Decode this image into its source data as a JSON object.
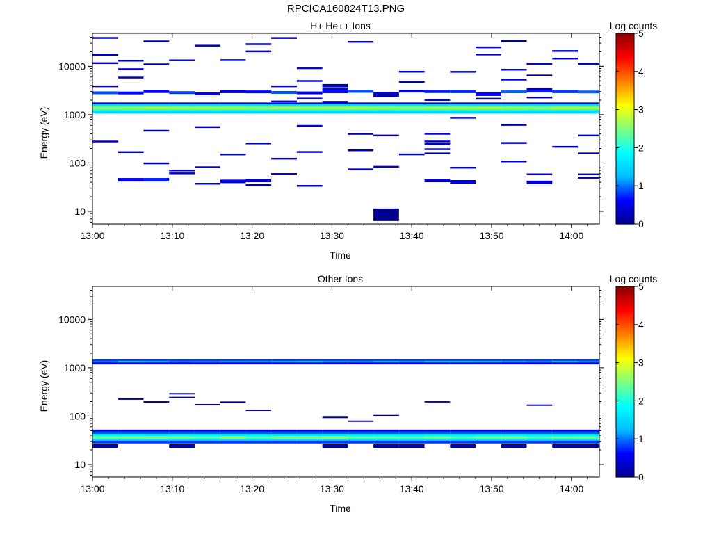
{
  "page": {
    "title": "RPCICA160824T13.PNG"
  },
  "colors": {
    "colormap": [
      "#00008b",
      "#0000ff",
      "#00bfff",
      "#00ffff",
      "#7fff7f",
      "#ffff00",
      "#ff7f00",
      "#ff0000",
      "#8b0000"
    ]
  },
  "chart_data": [
    {
      "type": "heatmap",
      "title": "H+ He++ Ions",
      "xlabel": "Time",
      "ylabel": "Energy (eV)",
      "colorbar_label": "Log counts",
      "colorbar_ticks": [
        "0",
        "1",
        "2",
        "3",
        "4",
        "5"
      ],
      "clim": [
        0,
        5
      ],
      "x_ticks": [
        "13:00",
        "13:10",
        "13:20",
        "13:30",
        "13:40",
        "13:50",
        "14:00"
      ],
      "xlim_minutes": [
        0,
        63.5
      ],
      "y_scale": "log",
      "y_ticks": [
        "10",
        "100",
        "1000",
        "10000"
      ],
      "ylim": [
        5.5,
        48000
      ],
      "bins": [
        {
          "t0": 3.2,
          "t1": 6.4,
          "e": 1500,
          "v": 2.3
        },
        {
          "t0": 6.4,
          "t1": 9.6,
          "e": 1500,
          "v": 2.3
        },
        {
          "t0": 9.6,
          "t1": 12.8,
          "e": 1500,
          "v": 2.3
        },
        {
          "t0": 12.8,
          "t1": 16.0,
          "e": 1500,
          "v": 2.3
        },
        {
          "t0": 16.0,
          "t1": 19.2,
          "e": 1500,
          "v": 2.3
        },
        {
          "t0": 19.2,
          "t1": 22.4,
          "e": 1500,
          "v": 2.3
        }
      ]
    },
    {
      "type": "heatmap",
      "title": "Other Ions",
      "xlabel": "Time",
      "ylabel": "Energy (eV)",
      "colorbar_label": "Log counts",
      "colorbar_ticks": [
        "0",
        "1",
        "2",
        "3",
        "4",
        "5"
      ],
      "clim": [
        0,
        5
      ],
      "x_ticks": [
        "13:00",
        "13:10",
        "13:20",
        "13:30",
        "13:40",
        "13:50",
        "14:00"
      ],
      "xlim_minutes": [
        0,
        63.5
      ],
      "y_scale": "log",
      "y_ticks": [
        "10",
        "100",
        "1000",
        "10000"
      ],
      "ylim": [
        5.5,
        48000
      ]
    }
  ]
}
